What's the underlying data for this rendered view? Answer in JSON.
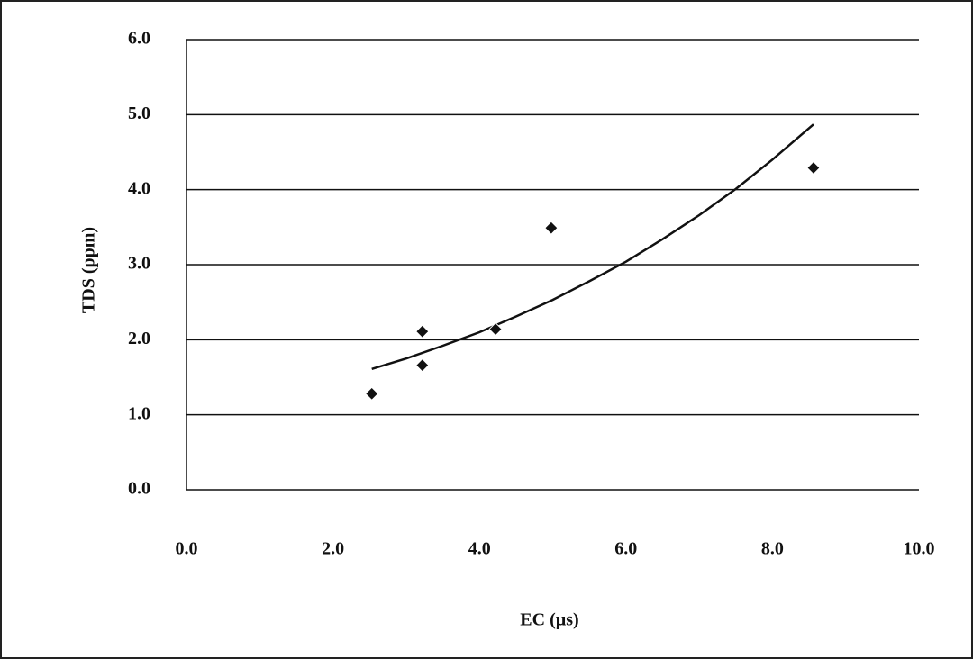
{
  "chart_data": {
    "type": "scatter",
    "x_label": "EC (µs)",
    "y_label": "TDS (ppm)",
    "series": [
      {
        "color": "#111111",
        "x": [
          2.53,
          3.22,
          3.22,
          4.22,
          4.98,
          8.56
        ],
        "values": [
          1.28,
          1.66,
          2.11,
          2.14,
          3.49,
          4.29
        ]
      }
    ],
    "trendline": {
      "color": "#111111",
      "x": [
        2.53,
        3.0,
        3.5,
        4.0,
        4.5,
        5.0,
        5.5,
        6.0,
        6.5,
        7.0,
        7.5,
        8.0,
        8.56
      ],
      "values": [
        1.61,
        1.75,
        1.92,
        2.1,
        2.31,
        2.53,
        2.78,
        3.04,
        3.34,
        3.66,
        4.01,
        4.4,
        4.87
      ]
    },
    "xlim": [
      0,
      10
    ],
    "xticks": [
      {
        "value": 0,
        "label": "0.0"
      },
      {
        "value": 2,
        "label": "2.0"
      },
      {
        "value": 4,
        "label": "4.0"
      },
      {
        "value": 6,
        "label": "6.0"
      },
      {
        "value": 8,
        "label": "8.0"
      },
      {
        "value": 10,
        "label": "10.0"
      }
    ],
    "ylim": [
      0,
      6
    ],
    "yticks": [
      {
        "value": 0,
        "label": "0.0"
      },
      {
        "value": 1,
        "label": "1.0"
      },
      {
        "value": 2,
        "label": "2.0"
      },
      {
        "value": 3,
        "label": "3.0"
      },
      {
        "value": 4,
        "label": "4.0"
      },
      {
        "value": 5,
        "label": "5.0"
      },
      {
        "value": 6,
        "label": "6.0"
      }
    ],
    "grid": true
  }
}
